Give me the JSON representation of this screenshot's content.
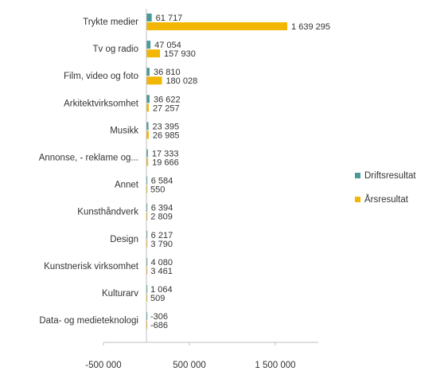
{
  "chart_data": {
    "type": "bar",
    "orientation": "horizontal",
    "categories": [
      "Trykte medier",
      "Tv og radio",
      "Film, video og foto",
      "Arkitektvirksomhet",
      "Musikk",
      "Annonse, - reklame og...",
      "Annet",
      "Kunsthåndverk",
      "Design",
      "Kunstnerisk virksomhet",
      "Kulturarv",
      "Data- og medieteknologi"
    ],
    "series": [
      {
        "name": "Driftsresultat",
        "color": "#4a9a9a",
        "values": [
          61717,
          47054,
          36810,
          36622,
          23395,
          17333,
          6584,
          6394,
          6217,
          4080,
          1064,
          -306
        ],
        "labels": [
          "61 717",
          "47 054",
          "36 810",
          "36 622",
          "23 395",
          "17 333",
          "6 584",
          "6 394",
          "6 217",
          "4 080",
          "1 064",
          "-306"
        ]
      },
      {
        "name": "Årsresultat",
        "color": "#f2b705",
        "values": [
          1639295,
          157930,
          180028,
          27257,
          26985,
          19666,
          550,
          2809,
          3790,
          3461,
          509,
          -686
        ],
        "labels": [
          "1 639 295",
          "157 930",
          "180 028",
          "27 257",
          "26 985",
          "19 666",
          "550",
          "2 809",
          "3 790",
          "3 461",
          "509",
          "-686"
        ]
      }
    ],
    "xlim": [
      -500000,
      2000000
    ],
    "xticks": [
      -500000,
      500000,
      1500000
    ],
    "xtick_labels": [
      "-500 000",
      "500 000",
      "1 500 000"
    ],
    "legend_position": "right",
    "grid": false
  }
}
